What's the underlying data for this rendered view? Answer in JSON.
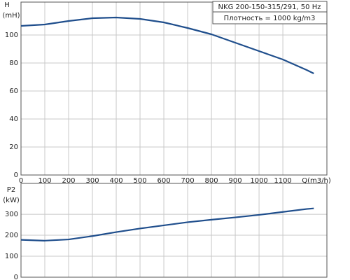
{
  "chart_data": [
    {
      "type": "line",
      "y_label": "H",
      "y_unit": "(mH)",
      "x_label": "Q(m3/h)",
      "annotations": [
        "NKG 200-150-315/291, 50 Hz",
        "Плотность = 1000 kg/m3"
      ],
      "x": [
        0,
        100,
        200,
        300,
        400,
        500,
        600,
        700,
        800,
        900,
        1000,
        1100,
        1200,
        1230
      ],
      "series": [
        {
          "color": "#1f4e8c",
          "values": [
            106.5,
            107.5,
            110,
            112,
            112.5,
            111.5,
            109,
            105,
            100.5,
            94.5,
            88.5,
            82.5,
            75,
            72.5
          ]
        }
      ],
      "xlim": [
        0,
        1285
      ],
      "ylim": [
        0,
        123.5
      ],
      "xticks": [
        0,
        100,
        200,
        300,
        400,
        500,
        600,
        700,
        800,
        900,
        1000,
        1100
      ],
      "yticks": [
        0,
        20,
        40,
        60,
        80,
        100
      ],
      "grid": true
    },
    {
      "type": "line",
      "y_label": "P2",
      "y_unit": "(kW)",
      "x": [
        0,
        100,
        200,
        300,
        400,
        500,
        600,
        700,
        800,
        900,
        1000,
        1100,
        1200,
        1230
      ],
      "series": [
        {
          "color": "#1f4e8c",
          "values": [
            178,
            174,
            180,
            196,
            215,
            232,
            247,
            262,
            274,
            285,
            297,
            311,
            325,
            328
          ]
        }
      ],
      "xlim": [
        0,
        1285
      ],
      "ylim": [
        0,
        447
      ],
      "yticks": [
        0,
        100,
        200,
        300
      ],
      "grid": true
    }
  ]
}
